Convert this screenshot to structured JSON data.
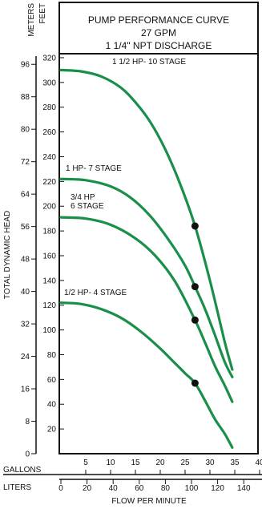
{
  "chart_data": {
    "type": "line",
    "title": [
      "PUMP PERFORMANCE CURVE",
      "27 GPM",
      "1 1/4\" NPT DISCHARGE"
    ],
    "units": {
      "meters": "METERS",
      "feet": "FEET",
      "gallons": "GALLONS",
      "liters": "LITERS"
    },
    "xlabel": "FLOW PER MINUTE",
    "ylabel": "TOTAL DYNAMIC HEAD",
    "x_gallons_ticks": [
      "5",
      "10",
      "15",
      "20",
      "25",
      "30",
      "35",
      "40"
    ],
    "x_liters_ticks": [
      "0",
      "20",
      "40",
      "60",
      "80",
      "100",
      "120",
      "140"
    ],
    "y_feet_ticks": [
      "20",
      "40",
      "60",
      "80",
      "100",
      "120",
      "140",
      "160",
      "180",
      "200",
      "220",
      "240",
      "260",
      "280",
      "300",
      "320"
    ],
    "y_meters_ticks": [
      "0",
      "8",
      "16",
      "24",
      "32",
      "40",
      "48",
      "56",
      "64",
      "72",
      "80",
      "88",
      "96"
    ],
    "xlim_gpm": [
      0,
      40
    ],
    "ylim_feet": [
      0,
      320
    ],
    "grid": false,
    "curve_color": "#1a8f4a",
    "series": [
      {
        "name": "1 1/2 HP- 10 STAGE",
        "points": [
          [
            0,
            310
          ],
          [
            4,
            309
          ],
          [
            8,
            305
          ],
          [
            12,
            296
          ],
          [
            15,
            284
          ],
          [
            18,
            268
          ],
          [
            21,
            246
          ],
          [
            24,
            218
          ],
          [
            27,
            184
          ],
          [
            30,
            140
          ],
          [
            33,
            90
          ],
          [
            34.5,
            68
          ]
        ]
      },
      {
        "name": "1 HP- 7 STAGE",
        "points": [
          [
            0,
            222
          ],
          [
            5,
            221
          ],
          [
            10,
            216
          ],
          [
            14,
            207
          ],
          [
            18,
            192
          ],
          [
            22,
            171
          ],
          [
            25,
            152
          ],
          [
            27,
            135
          ],
          [
            29,
            117
          ],
          [
            31,
            96
          ],
          [
            33,
            74
          ],
          [
            34.5,
            62
          ]
        ]
      },
      {
        "name": "3/4 HP\n6 STAGE",
        "points": [
          [
            0,
            191
          ],
          [
            5,
            190
          ],
          [
            10,
            185
          ],
          [
            15,
            174
          ],
          [
            19,
            160
          ],
          [
            23,
            139
          ],
          [
            27,
            108
          ],
          [
            29,
            90
          ],
          [
            31,
            71
          ],
          [
            33,
            55
          ],
          [
            34.5,
            42
          ]
        ]
      },
      {
        "name": "1/2 HP- 4 STAGE",
        "points": [
          [
            0,
            122
          ],
          [
            4,
            121
          ],
          [
            8,
            117
          ],
          [
            12,
            110
          ],
          [
            16,
            99
          ],
          [
            20,
            85
          ],
          [
            23,
            73
          ],
          [
            25,
            65
          ],
          [
            27,
            57
          ],
          [
            29,
            43
          ],
          [
            31,
            28
          ],
          [
            33,
            16
          ],
          [
            34.5,
            5
          ]
        ]
      }
    ],
    "rated_points": [
      [
        27,
        184
      ],
      [
        27,
        135
      ],
      [
        27,
        108
      ],
      [
        27,
        57
      ]
    ]
  }
}
